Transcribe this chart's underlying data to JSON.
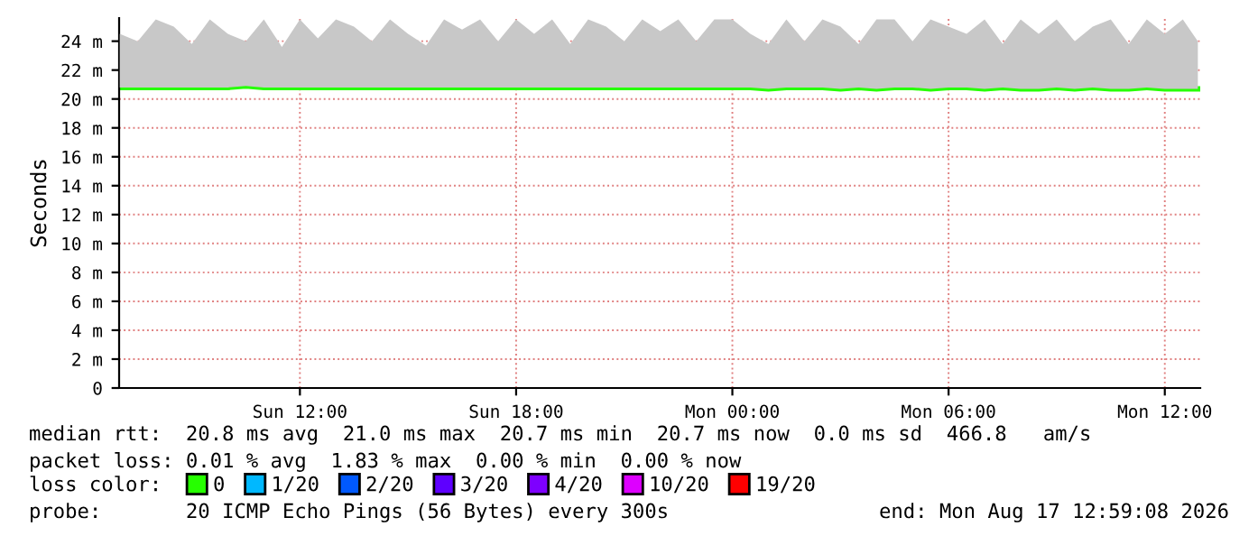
{
  "chart_data": {
    "type": "line",
    "ylabel": "Seconds",
    "x": [
      "2026-08-16T07:00",
      "2026-08-16T07:30",
      "2026-08-16T08:00",
      "2026-08-16T08:30",
      "2026-08-16T09:00",
      "2026-08-16T09:30",
      "2026-08-16T10:00",
      "2026-08-16T10:30",
      "2026-08-16T11:00",
      "2026-08-16T11:30",
      "2026-08-16T12:00",
      "2026-08-16T12:30",
      "2026-08-16T13:00",
      "2026-08-16T13:30",
      "2026-08-16T14:00",
      "2026-08-16T14:30",
      "2026-08-16T15:00",
      "2026-08-16T15:30",
      "2026-08-16T16:00",
      "2026-08-16T16:30",
      "2026-08-16T17:00",
      "2026-08-16T17:30",
      "2026-08-16T18:00",
      "2026-08-16T18:30",
      "2026-08-16T19:00",
      "2026-08-16T19:30",
      "2026-08-16T20:00",
      "2026-08-16T20:30",
      "2026-08-16T21:00",
      "2026-08-16T21:30",
      "2026-08-16T22:00",
      "2026-08-16T22:30",
      "2026-08-16T23:00",
      "2026-08-16T23:30",
      "2026-08-17T00:00",
      "2026-08-17T00:30",
      "2026-08-17T01:00",
      "2026-08-17T01:30",
      "2026-08-17T02:00",
      "2026-08-17T02:30",
      "2026-08-17T03:00",
      "2026-08-17T03:30",
      "2026-08-17T04:00",
      "2026-08-17T04:30",
      "2026-08-17T05:00",
      "2026-08-17T05:30",
      "2026-08-17T06:00",
      "2026-08-17T06:30",
      "2026-08-17T07:00",
      "2026-08-17T07:30",
      "2026-08-17T08:00",
      "2026-08-17T08:30",
      "2026-08-17T09:00",
      "2026-08-17T09:30",
      "2026-08-17T10:00",
      "2026-08-17T10:30",
      "2026-08-17T11:00",
      "2026-08-17T11:30",
      "2026-08-17T12:00",
      "2026-08-17T12:30",
      "2026-08-17T12:55"
    ],
    "series": [
      {
        "type": "area",
        "color": "#c8c8c8",
        "values": [
          24.5,
          24.0,
          25.5,
          25.0,
          23.8,
          25.5,
          24.5,
          24.0,
          25.5,
          23.6,
          25.5,
          24.2,
          25.5,
          25.0,
          24.0,
          25.5,
          24.5,
          23.7,
          25.5,
          24.8,
          25.5,
          24.0,
          25.5,
          24.5,
          25.5,
          23.8,
          25.5,
          25.0,
          24.0,
          25.5,
          24.7,
          25.5,
          24.0,
          25.5,
          25.5,
          24.5,
          23.8,
          25.5,
          24.0,
          25.5,
          25.0,
          23.8,
          25.5,
          25.5,
          24.0,
          25.5,
          25.0,
          24.5,
          25.5,
          23.8,
          25.5,
          24.5,
          25.5,
          24.0,
          25.0,
          25.5,
          23.8,
          25.5,
          24.5,
          25.5,
          24.0
        ]
      },
      {
        "name": "0",
        "color": "#26ff00",
        "values": [
          20.8,
          20.8,
          20.8,
          20.8,
          20.8,
          20.8,
          20.8,
          20.9,
          20.8,
          20.8,
          20.8,
          20.8,
          20.8,
          20.8,
          20.8,
          20.8,
          20.8,
          20.8,
          20.8,
          20.8,
          20.8,
          20.8,
          20.8,
          20.8,
          20.8,
          20.8,
          20.8,
          20.8,
          20.8,
          20.8,
          20.8,
          20.8,
          20.8,
          20.8,
          20.8,
          20.8,
          20.7,
          20.8,
          20.8,
          20.8,
          20.7,
          20.8,
          20.7,
          20.8,
          20.8,
          20.7,
          20.8,
          20.8,
          20.7,
          20.8,
          20.7,
          20.7,
          20.8,
          20.7,
          20.8,
          20.7,
          20.7,
          20.8,
          20.7,
          20.7,
          20.7
        ]
      },
      {
        "name": "1/20",
        "color": "#00b8ff",
        "values": [
          null,
          null,
          null,
          null,
          null,
          null,
          null,
          null,
          null,
          null,
          null,
          null,
          null,
          null,
          null,
          null,
          null,
          null,
          null,
          null,
          null,
          null,
          null,
          null,
          null,
          null,
          null,
          null,
          null,
          null,
          null,
          null,
          null,
          null,
          null,
          null,
          null,
          null,
          null,
          null,
          null,
          null,
          null,
          null,
          null,
          null,
          null,
          null,
          null,
          null,
          null,
          null,
          null,
          null,
          null,
          null,
          null,
          null,
          null,
          null,
          null
        ]
      },
      {
        "name": "2/20",
        "color": "#0059ff",
        "values": [
          null,
          null,
          null,
          null,
          null,
          null,
          null,
          null,
          null,
          null,
          null,
          null,
          null,
          null,
          null,
          null,
          null,
          null,
          null,
          null,
          null,
          null,
          null,
          null,
          null,
          null,
          null,
          null,
          null,
          null,
          null,
          null,
          null,
          null,
          null,
          null,
          null,
          null,
          null,
          null,
          null,
          null,
          null,
          null,
          null,
          null,
          null,
          null,
          null,
          null,
          null,
          null,
          null,
          null,
          null,
          null,
          null,
          null,
          null,
          null,
          null
        ]
      },
      {
        "name": "3/20",
        "color": "#5e00ff",
        "values": [
          null,
          null,
          null,
          null,
          null,
          null,
          null,
          null,
          null,
          null,
          null,
          null,
          null,
          null,
          null,
          null,
          null,
          null,
          null,
          null,
          null,
          null,
          null,
          null,
          null,
          null,
          null,
          null,
          null,
          null,
          null,
          null,
          null,
          null,
          null,
          null,
          null,
          null,
          null,
          null,
          null,
          null,
          null,
          null,
          null,
          null,
          null,
          null,
          null,
          null,
          null,
          null,
          null,
          null,
          null,
          null,
          null,
          null,
          null,
          null,
          null
        ]
      },
      {
        "name": "4/20",
        "color": "#7e00ff",
        "values": [
          null,
          null,
          null,
          null,
          null,
          null,
          null,
          null,
          null,
          null,
          null,
          null,
          null,
          null,
          null,
          null,
          null,
          null,
          null,
          null,
          null,
          null,
          null,
          null,
          null,
          null,
          null,
          null,
          null,
          null,
          null,
          null,
          null,
          null,
          null,
          null,
          null,
          null,
          null,
          null,
          null,
          null,
          null,
          null,
          null,
          null,
          null,
          null,
          null,
          null,
          null,
          null,
          null,
          null,
          null,
          null,
          null,
          null,
          null,
          null,
          null
        ]
      },
      {
        "name": "10/20",
        "color": "#dd00ff",
        "values": [
          null,
          null,
          null,
          null,
          null,
          null,
          null,
          null,
          null,
          null,
          null,
          null,
          null,
          null,
          null,
          null,
          null,
          null,
          null,
          null,
          null,
          null,
          null,
          null,
          null,
          null,
          null,
          null,
          null,
          null,
          null,
          null,
          null,
          null,
          null,
          null,
          null,
          null,
          null,
          null,
          null,
          null,
          null,
          null,
          null,
          null,
          null,
          null,
          null,
          null,
          null,
          null,
          null,
          null,
          null,
          null,
          null,
          null,
          null,
          null,
          null
        ]
      },
      {
        "name": "19/20",
        "color": "#ff0000",
        "values": [
          null,
          null,
          null,
          null,
          null,
          null,
          null,
          null,
          null,
          null,
          null,
          null,
          null,
          null,
          null,
          null,
          null,
          null,
          null,
          null,
          null,
          null,
          null,
          null,
          null,
          null,
          null,
          null,
          null,
          null,
          null,
          null,
          null,
          null,
          null,
          null,
          null,
          null,
          null,
          null,
          null,
          null,
          null,
          null,
          null,
          null,
          null,
          null,
          null,
          null,
          null,
          null,
          null,
          null,
          null,
          null,
          null,
          null,
          null,
          null,
          null
        ]
      }
    ],
    "legend": "bottom",
    "legend_title": "loss color:",
    "grid": true,
    "xlim": [
      "2026-08-16T06:59",
      "2026-08-17T12:59"
    ],
    "xticks": [
      {
        "value": "2026-08-16T12:00",
        "label": "Sun 12:00"
      },
      {
        "value": "2026-08-16T18:00",
        "label": "Sun 18:00"
      },
      {
        "value": "2026-08-17T00:00",
        "label": "Mon 00:00"
      },
      {
        "value": "2026-08-17T06:00",
        "label": "Mon 06:00"
      },
      {
        "value": "2026-08-17T12:00",
        "label": "Mon 12:00"
      }
    ],
    "ylim": [
      0,
      25.6
    ],
    "yticks": [
      0,
      {
        "value": 2,
        "label": "2 m"
      },
      {
        "value": 4,
        "label": "4 m"
      },
      {
        "value": 6,
        "label": "6 m"
      },
      {
        "value": 8,
        "label": "8 m"
      },
      {
        "value": 10,
        "label": "10 m"
      },
      {
        "value": 12,
        "label": "12 m"
      },
      {
        "value": 14,
        "label": "14 m"
      },
      {
        "value": 16,
        "label": "16 m"
      },
      {
        "value": 18,
        "label": "18 m"
      },
      {
        "value": 20,
        "label": "20 m"
      },
      {
        "value": 22,
        "label": "22 m"
      },
      {
        "value": 24,
        "label": "24 m"
      }
    ],
    "annotations": [
      "median rtt:  20.8 ms avg  21.0 ms max  20.7 ms min  20.7 ms now  0.0 ms sd  466.8   am/s",
      "packet loss: 0.01 % avg  1.83 % max  0.00 % min  0.00 % now",
      "probe:       20 ICMP Echo Pings (56 Bytes) every 300s",
      "end: Mon Aug 17 12:59:08 2026"
    ]
  }
}
